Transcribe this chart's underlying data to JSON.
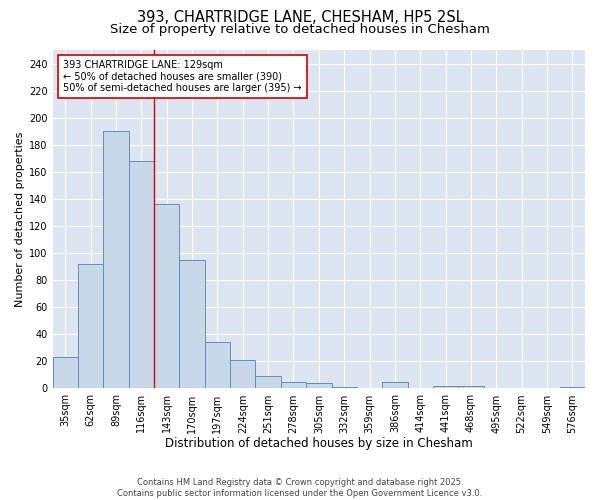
{
  "title": "393, CHARTRIDGE LANE, CHESHAM, HP5 2SL",
  "subtitle": "Size of property relative to detached houses in Chesham",
  "xlabel": "Distribution of detached houses by size in Chesham",
  "ylabel": "Number of detached properties",
  "footer": "Contains HM Land Registry data © Crown copyright and database right 2025.\nContains public sector information licensed under the Open Government Licence v3.0.",
  "categories": [
    "35sqm",
    "62sqm",
    "89sqm",
    "116sqm",
    "143sqm",
    "170sqm",
    "197sqm",
    "224sqm",
    "251sqm",
    "278sqm",
    "305sqm",
    "332sqm",
    "359sqm",
    "386sqm",
    "414sqm",
    "441sqm",
    "468sqm",
    "495sqm",
    "522sqm",
    "549sqm",
    "576sqm"
  ],
  "values": [
    23,
    92,
    190,
    168,
    136,
    95,
    34,
    21,
    9,
    5,
    4,
    1,
    0,
    5,
    0,
    2,
    2,
    0,
    0,
    0,
    1
  ],
  "bar_color": "#c8d8e8",
  "bar_edge_color": "#6090b8",
  "plot_bg_color": "#dde6f0",
  "fig_bg_color": "#ffffff",
  "grid_color": "#ffffff",
  "annotation_box_text": "393 CHARTRIDGE LANE: 129sqm\n← 50% of detached houses are smaller (390)\n50% of semi-detached houses are larger (395) →",
  "annotation_box_color": "#ffffff",
  "annotation_box_edge_color": "#cc0000",
  "vline_x": 3.5,
  "vline_color": "#cc0000",
  "ylim": [
    0,
    250
  ],
  "yticks": [
    0,
    20,
    40,
    60,
    80,
    100,
    120,
    140,
    160,
    180,
    200,
    220,
    240
  ],
  "title_fontsize": 10.5,
  "subtitle_fontsize": 9.5,
  "xlabel_fontsize": 8.5,
  "ylabel_fontsize": 8,
  "tick_fontsize": 7,
  "annotation_fontsize": 7,
  "footer_fontsize": 6
}
